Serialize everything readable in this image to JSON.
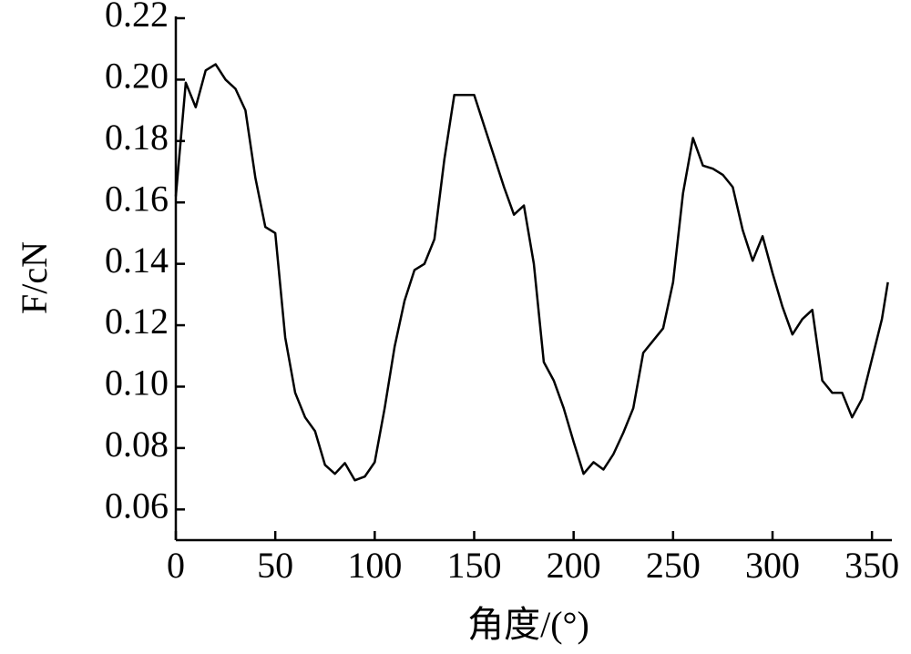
{
  "chart_data": {
    "type": "line",
    "x_label": "角度/(°)",
    "y_label": "F/cN",
    "x": [
      0,
      5,
      10,
      15,
      20,
      25,
      30,
      35,
      40,
      45,
      50,
      55,
      60,
      65,
      70,
      75,
      80,
      85,
      90,
      95,
      100,
      105,
      110,
      115,
      120,
      125,
      130,
      135,
      140,
      145,
      150,
      155,
      160,
      165,
      170,
      175,
      180,
      185,
      190,
      195,
      200,
      205,
      210,
      215,
      220,
      225,
      230,
      235,
      240,
      245,
      250,
      255,
      260,
      265,
      270,
      275,
      280,
      285,
      290,
      295,
      300,
      305,
      310,
      315,
      320,
      325,
      330,
      335,
      340,
      345,
      350,
      355,
      358
    ],
    "series": [
      {
        "color": "#000000",
        "values": [
          0.162,
          0.199,
          0.191,
          0.203,
          0.205,
          0.2,
          0.197,
          0.19,
          0.168,
          0.152,
          0.15,
          0.116,
          0.098,
          0.09,
          0.0855,
          0.0745,
          0.0716,
          0.0751,
          0.0695,
          0.0707,
          0.0754,
          0.093,
          0.113,
          0.128,
          0.138,
          0.14,
          0.148,
          0.174,
          0.195,
          0.195,
          0.195,
          0.185,
          0.175,
          0.165,
          0.156,
          0.159,
          0.14,
          0.108,
          0.102,
          0.093,
          0.082,
          0.0716,
          0.0754,
          0.073,
          0.078,
          0.085,
          0.093,
          0.111,
          0.115,
          0.119,
          0.134,
          0.163,
          0.181,
          0.172,
          0.171,
          0.169,
          0.165,
          0.151,
          0.141,
          0.149,
          0.137,
          0.126,
          0.117,
          0.122,
          0.125,
          0.102,
          0.098,
          0.098,
          0.09,
          0.096,
          0.109,
          0.122,
          0.134
        ]
      }
    ],
    "xlim": [
      0,
      360
    ],
    "xticks": [
      0,
      50,
      100,
      150,
      200,
      250,
      300,
      350
    ],
    "ylim": [
      0.05,
      0.22
    ],
    "yticks": [
      0.06,
      0.08,
      {
        "value": 0.1,
        "label": "0.10"
      },
      0.12,
      0.14,
      0.16,
      0.18,
      {
        "value": 0.2,
        "label": "0.20"
      },
      0.22
    ]
  }
}
